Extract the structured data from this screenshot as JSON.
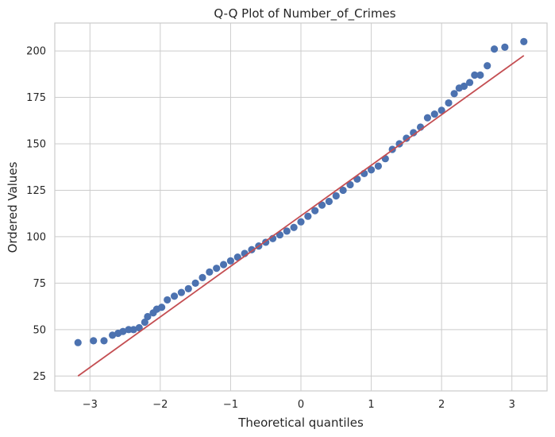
{
  "chart_data": {
    "type": "scatter",
    "title": "Q-Q Plot of Number_of_Crimes",
    "xlabel": "Theoretical quantiles",
    "ylabel": "Ordered Values",
    "xlim": [
      -3.5,
      3.5
    ],
    "ylim": [
      17,
      215
    ],
    "xticks": [
      -3,
      -2,
      -1,
      0,
      1,
      2,
      3
    ],
    "yticks": [
      25,
      50,
      75,
      100,
      125,
      150,
      175,
      200
    ],
    "grid": true,
    "colors": {
      "points": "#4c72b0",
      "line": "#c44e52",
      "grid": "#cccccc",
      "frame": "#cccccc"
    },
    "fit_line": {
      "x": [
        -3.17,
        3.17
      ],
      "y": [
        25,
        197.5
      ]
    },
    "series": [
      {
        "x": [
          -3.17,
          -2.95,
          -2.8,
          -2.68,
          -2.6,
          -2.53,
          -2.45,
          -2.38,
          -2.3,
          -2.22,
          -2.18,
          -2.1,
          -2.05,
          -1.98,
          -1.9,
          -1.8,
          -1.7,
          -1.6,
          -1.5,
          -1.4,
          -1.3,
          -1.2,
          -1.1,
          -1.0,
          -0.9,
          -0.8,
          -0.7,
          -0.6,
          -0.5,
          -0.4,
          -0.3,
          -0.2,
          -0.1,
          0.0,
          0.1,
          0.2,
          0.3,
          0.4,
          0.5,
          0.6,
          0.7,
          0.8,
          0.9,
          1.0,
          1.1,
          1.2,
          1.3,
          1.4,
          1.5,
          1.6,
          1.7,
          1.8,
          1.9,
          2.0,
          2.1,
          2.18,
          2.25,
          2.32,
          2.4,
          2.47,
          2.55,
          2.65,
          2.75,
          2.9,
          3.17
        ],
        "y": [
          43,
          44,
          44,
          47,
          48,
          49,
          50,
          50,
          51,
          54,
          57,
          59,
          61,
          62,
          66,
          68,
          70,
          72,
          75,
          78,
          81,
          83,
          85,
          87,
          89,
          91,
          93,
          95,
          97,
          99,
          101,
          103,
          105,
          108,
          111,
          114,
          117,
          119,
          122,
          125,
          128,
          131,
          134,
          136,
          138,
          142,
          147,
          150,
          153,
          156,
          159,
          164,
          166,
          168,
          172,
          177,
          180,
          181,
          183,
          187,
          187,
          192,
          201,
          202,
          205
        ]
      }
    ]
  }
}
